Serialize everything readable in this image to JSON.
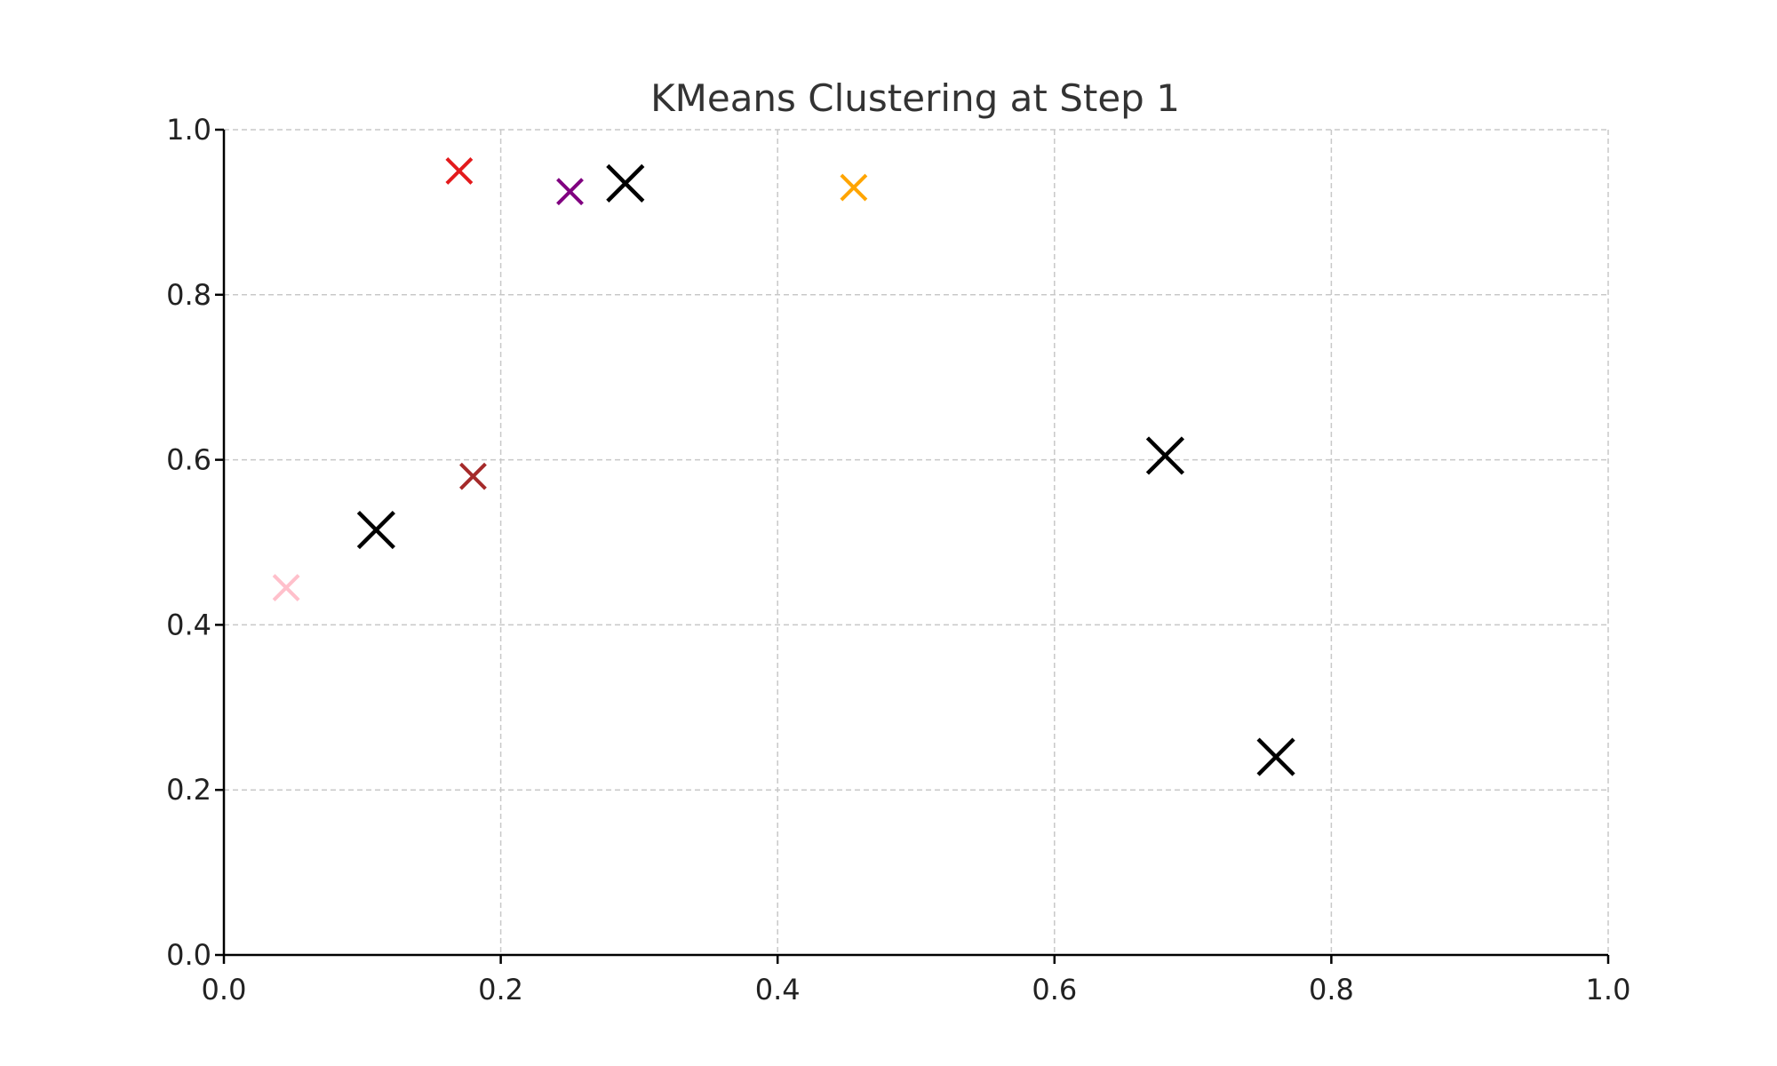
{
  "chart_data": {
    "type": "scatter",
    "title": "KMeans Clustering at Step 1",
    "xlabel": "",
    "ylabel": "",
    "xlim": [
      0.0,
      1.0
    ],
    "ylim": [
      0.0,
      1.0
    ],
    "grid": true,
    "x_ticks": [
      "0.0",
      "0.2",
      "0.4",
      "0.6",
      "0.8",
      "1.0"
    ],
    "y_ticks": [
      "0.0",
      "0.2",
      "0.4",
      "0.6",
      "0.8",
      "1.0"
    ],
    "x_tick_values": [
      0.0,
      0.2,
      0.4,
      0.6,
      0.8,
      1.0
    ],
    "y_tick_values": [
      0.0,
      0.2,
      0.4,
      0.6,
      0.8,
      1.0
    ],
    "points": [
      {
        "x": 0.17,
        "y": 0.95,
        "color": "#e31a1c",
        "marker": "x",
        "role": "point"
      },
      {
        "x": 0.25,
        "y": 0.925,
        "color": "#800080",
        "marker": "x",
        "role": "point"
      },
      {
        "x": 0.455,
        "y": 0.93,
        "color": "#ffa500",
        "marker": "x",
        "role": "point"
      },
      {
        "x": 0.18,
        "y": 0.58,
        "color": "#a52a2a",
        "marker": "x",
        "role": "point"
      },
      {
        "x": 0.045,
        "y": 0.445,
        "color": "#ffc0cb",
        "marker": "x",
        "role": "point"
      }
    ],
    "centroids": [
      {
        "x": 0.29,
        "y": 0.935,
        "color": "#000000",
        "marker": "x",
        "role": "centroid"
      },
      {
        "x": 0.11,
        "y": 0.515,
        "color": "#000000",
        "marker": "x",
        "role": "centroid"
      },
      {
        "x": 0.68,
        "y": 0.605,
        "color": "#000000",
        "marker": "x",
        "role": "centroid"
      },
      {
        "x": 0.76,
        "y": 0.24,
        "color": "#000000",
        "marker": "x",
        "role": "centroid"
      }
    ]
  }
}
